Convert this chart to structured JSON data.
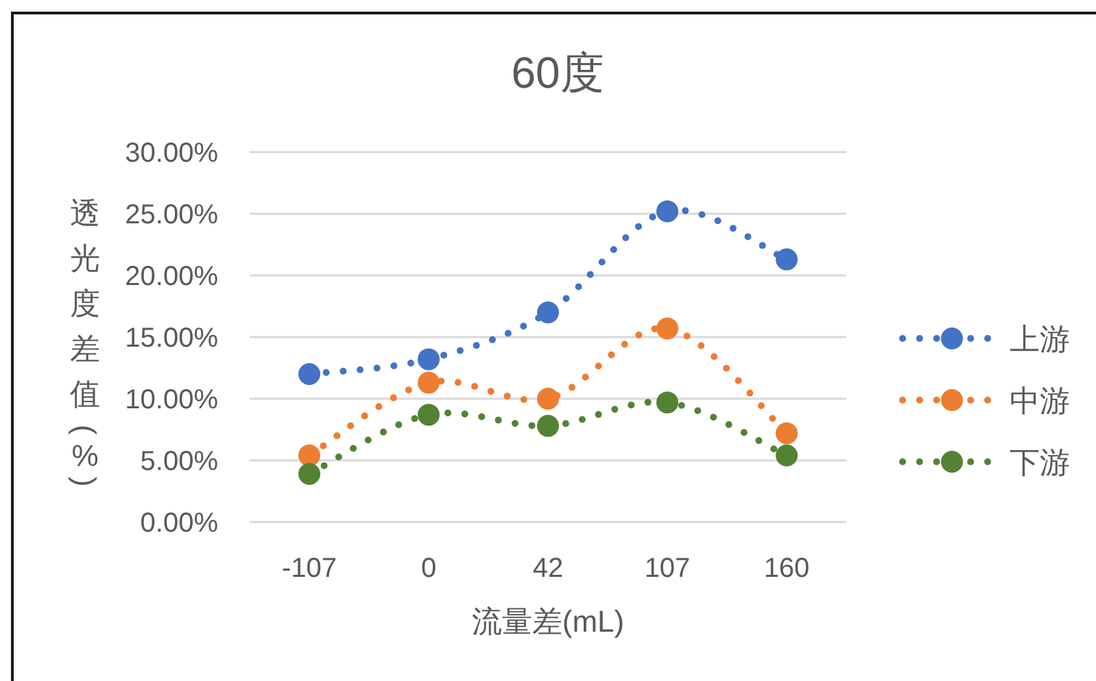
{
  "chart_data": {
    "type": "line",
    "title": "60度",
    "xlabel": "流量差(mL)",
    "ylabel": "透光度差值(%)",
    "categories": [
      "-107",
      "0",
      "42",
      "107",
      "160"
    ],
    "series": [
      {
        "name": "上游",
        "color": "#4472c4",
        "values": [
          12.0,
          13.2,
          17.0,
          25.2,
          21.3
        ]
      },
      {
        "name": "中游",
        "color": "#ed7d31",
        "values": [
          5.4,
          11.3,
          10.0,
          15.7,
          7.2
        ]
      },
      {
        "name": "下游",
        "color": "#548235",
        "values": [
          3.9,
          8.7,
          7.8,
          9.7,
          5.4
        ]
      }
    ],
    "ylim": [
      0,
      30
    ],
    "yticks": [
      {
        "value": 0,
        "label": "0.00%"
      },
      {
        "value": 5,
        "label": "5.00%"
      },
      {
        "value": 10,
        "label": "10.00%"
      },
      {
        "value": 15,
        "label": "15.00%"
      },
      {
        "value": 20,
        "label": "20.00%"
      },
      {
        "value": 25,
        "label": "25.00%"
      },
      {
        "value": 30,
        "label": "30.00%"
      }
    ],
    "grid": "y",
    "legend": "right",
    "marker": "circle",
    "line_style": "dotted"
  }
}
